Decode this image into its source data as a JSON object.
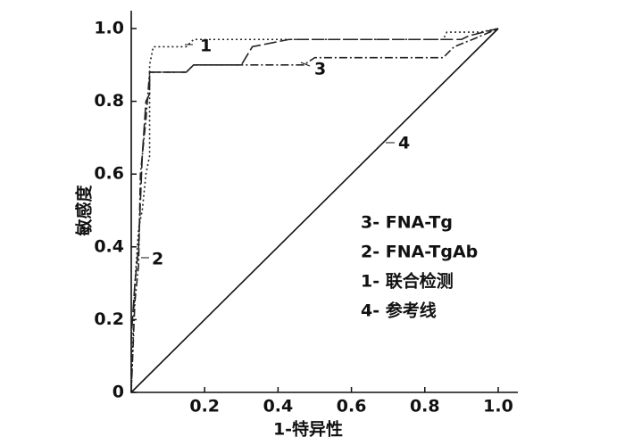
{
  "chart_data": {
    "type": "line",
    "x_label": "1-特异性",
    "y_label": "敏感度",
    "xlim": [
      0,
      1
    ],
    "ylim": [
      0,
      1
    ],
    "xticks": [
      0.2,
      0.4,
      0.6,
      0.8,
      {
        "value": 1,
        "label": "1.0"
      }
    ],
    "yticks": [
      0,
      0.2,
      0.4,
      0.6,
      0.8,
      {
        "value": 1,
        "label": "1.0"
      }
    ],
    "series": [
      {
        "name": "3- FNA-Tg",
        "color": "#222",
        "dash": "9,3,2,3",
        "x": [
          0,
          0.01,
          0.02,
          0.025,
          0.04,
          0.05,
          0.15,
          0.17,
          0.47,
          0.5,
          0.85,
          0.88,
          0.93,
          1
        ],
        "y": [
          0,
          0.25,
          0.35,
          0.6,
          0.75,
          0.88,
          0.88,
          0.9,
          0.9,
          0.92,
          0.92,
          0.95,
          0.97,
          1
        ]
      },
      {
        "name": "2- FNA-TgAb",
        "color": "#222",
        "dash": "14,4",
        "x": [
          0,
          0,
          0.01,
          0.02,
          0.03,
          0.04,
          0.05,
          0.05,
          0.15,
          0.17,
          0.3,
          0.33,
          0.43,
          0.9,
          0.92,
          1
        ],
        "y": [
          0,
          0.15,
          0.3,
          0.4,
          0.65,
          0.8,
          0.82,
          0.88,
          0.88,
          0.9,
          0.9,
          0.95,
          0.97,
          0.97,
          0.98,
          1
        ]
      },
      {
        "name": "1- 联合检测",
        "color": "#222",
        "dash": "2,3",
        "x": [
          0,
          0.005,
          0.01,
          0.02,
          0.03,
          0.04,
          0.05,
          0.05,
          0.06,
          0.15,
          0.17,
          0.85,
          0.86,
          0.95,
          1
        ],
        "y": [
          0,
          0.15,
          0.3,
          0.45,
          0.5,
          0.6,
          0.65,
          0.9,
          0.95,
          0.95,
          0.97,
          0.97,
          0.99,
          0.99,
          1
        ]
      },
      {
        "name": "4- 参考线",
        "color": "#111",
        "dash": "none",
        "x": [
          0,
          1
        ],
        "y": [
          0,
          1
        ]
      }
    ],
    "curve_labels": [
      "1",
      "2",
      "3",
      "4"
    ]
  }
}
